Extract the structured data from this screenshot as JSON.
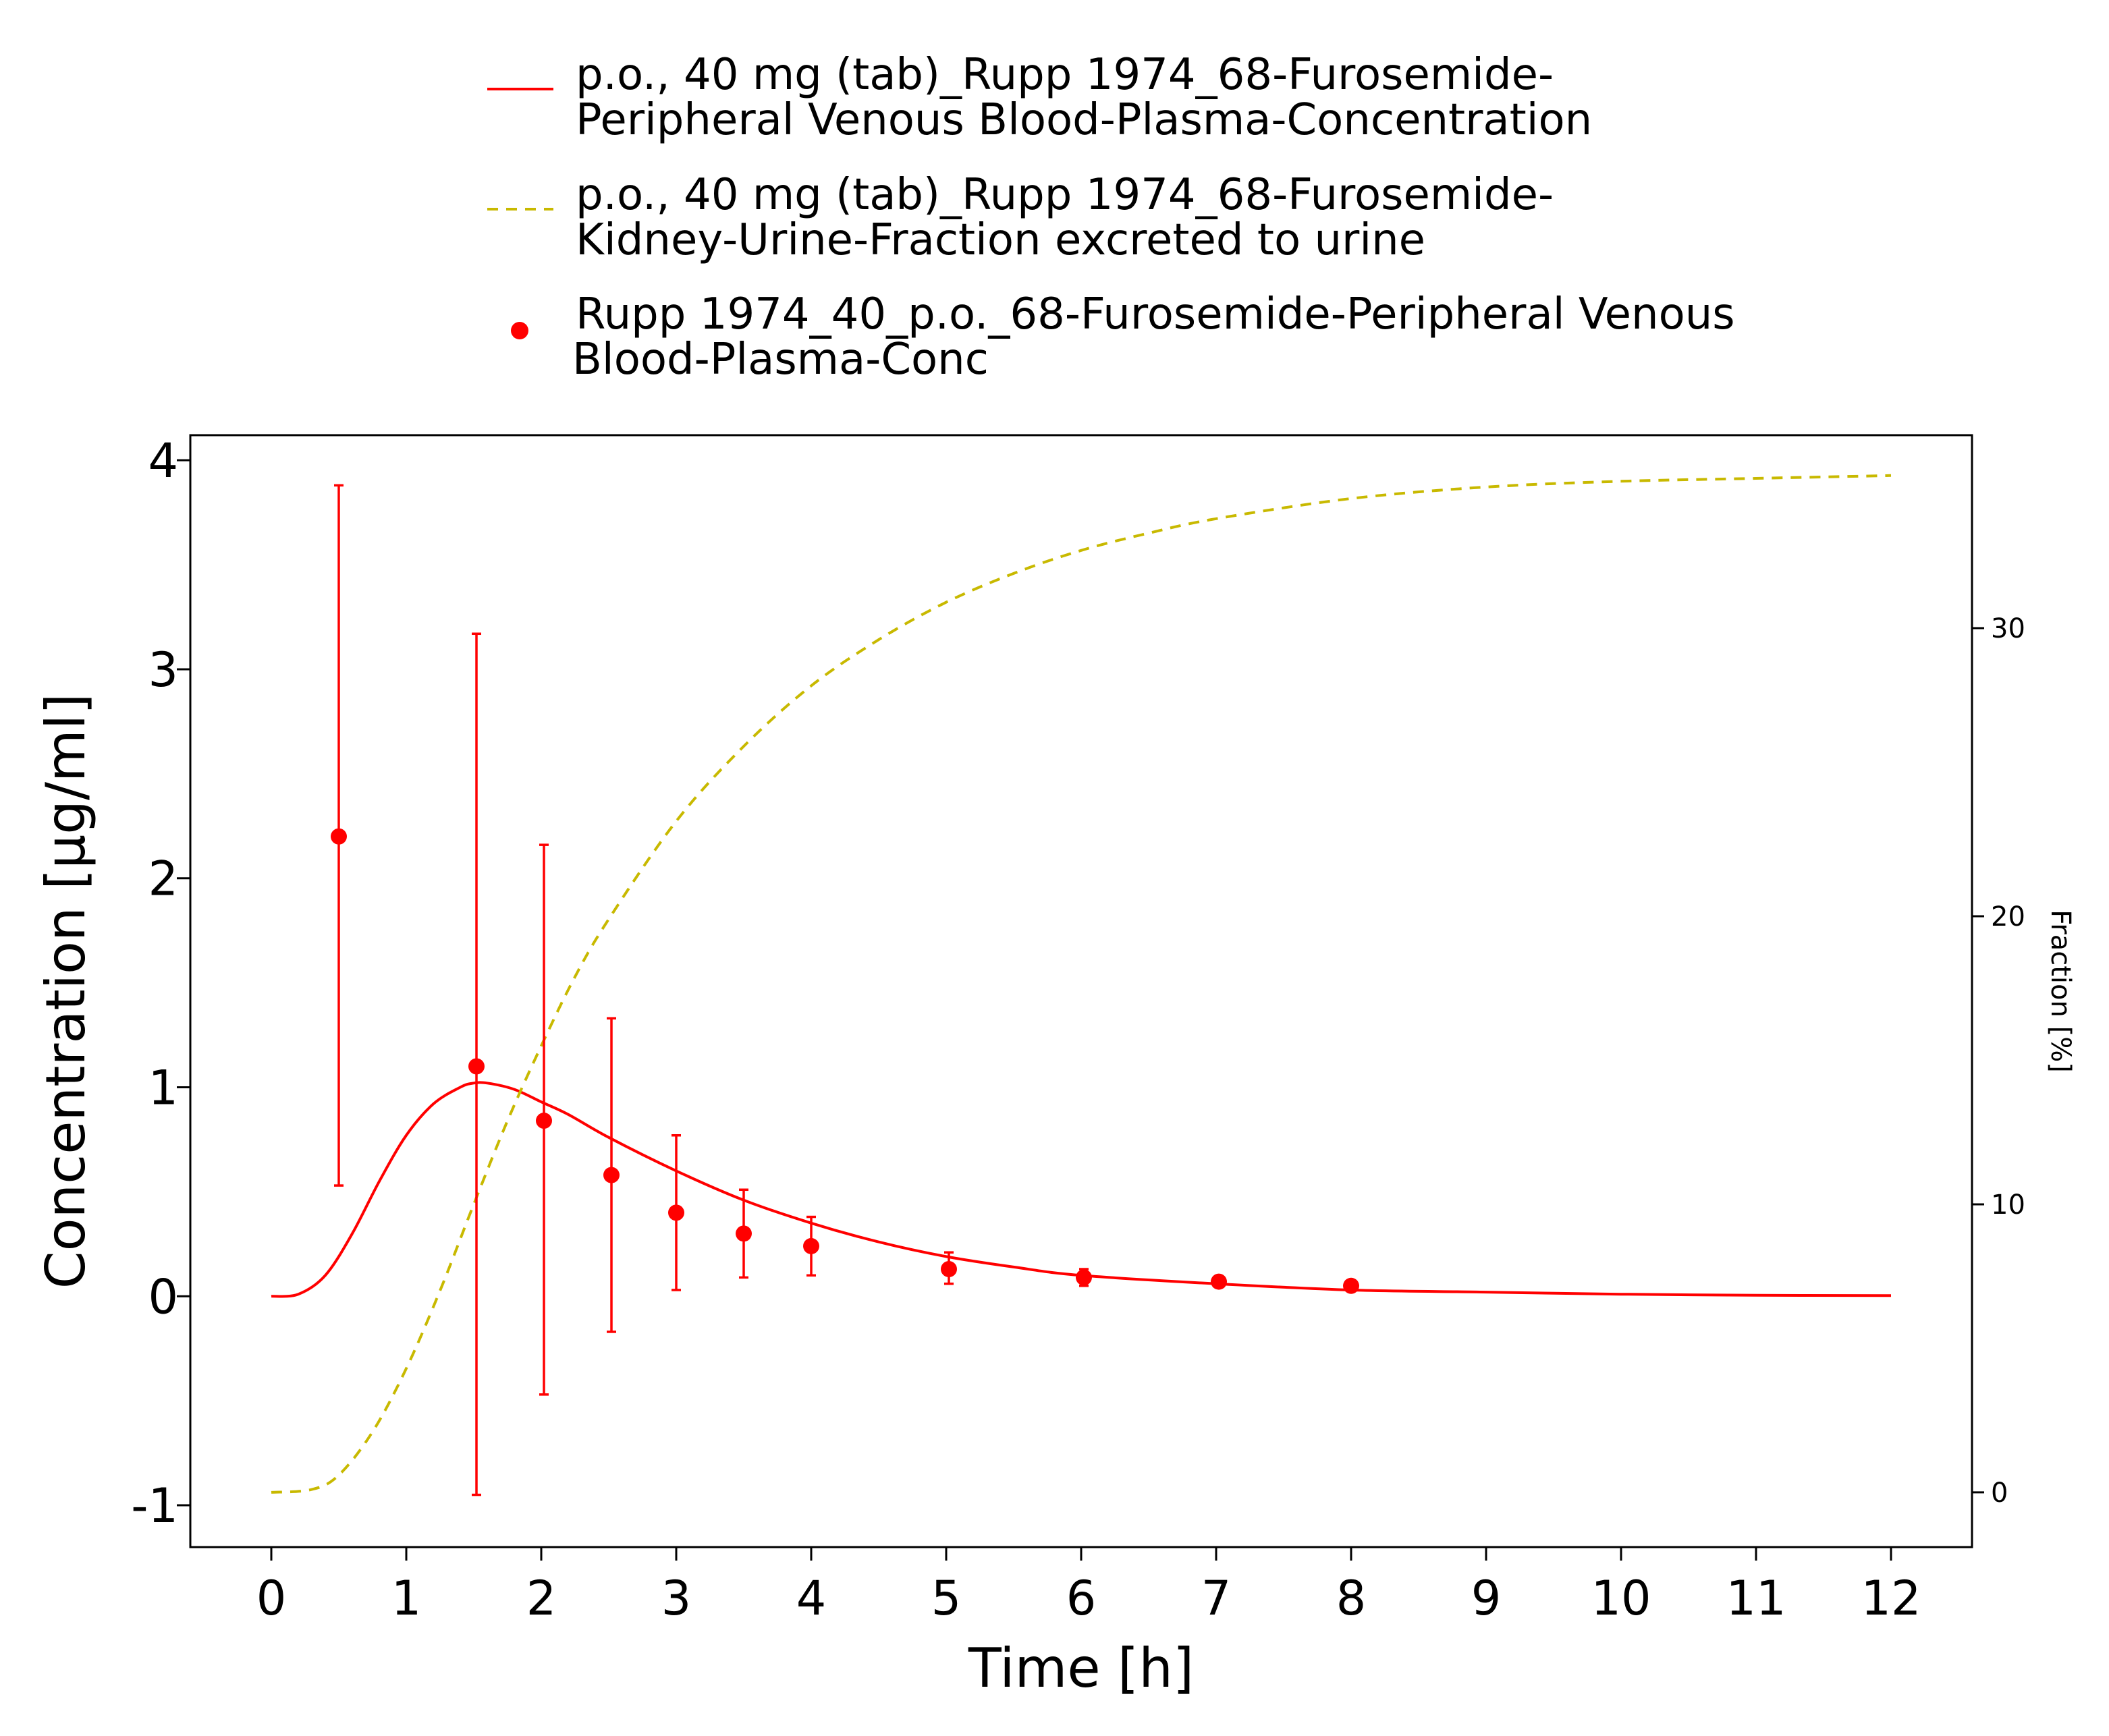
{
  "chart_data": {
    "type": "line",
    "xlabel": "Time [h]",
    "ylabel": "Concentration [µg/ml]",
    "y2label": "Fraction [%]",
    "xlim": [
      -0.6,
      12.6
    ],
    "ylim": [
      -1.2,
      4.12
    ],
    "y2lim": [
      -1.9,
      36.7
    ],
    "x_ticks": [
      0,
      1,
      2,
      3,
      4,
      5,
      6,
      7,
      8,
      9,
      10,
      11,
      12
    ],
    "x_tick_labels": [
      "0",
      "1",
      "2",
      "3",
      "4",
      "5",
      "6",
      "7",
      "8",
      "9",
      "10",
      "11",
      "12"
    ],
    "y_ticks": [
      -1,
      0,
      1,
      2,
      3,
      4
    ],
    "y_tick_labels": [
      "-1",
      "0",
      "1",
      "2",
      "3",
      "4"
    ],
    "y2_ticks": [
      0,
      10,
      20,
      30
    ],
    "y2_tick_labels": [
      "0",
      "10",
      "20",
      "30"
    ],
    "grid": false,
    "legend_position": "top",
    "legend": [
      {
        "key": "sim_plasma",
        "style": "line",
        "lines": [
          "p.o., 40 mg (tab)_Rupp 1974_68-Furosemide-",
          "Peripheral Venous Blood-Plasma-Concentration"
        ]
      },
      {
        "key": "sim_urine",
        "style": "dashed",
        "lines": [
          "p.o., 40 mg (tab)_Rupp 1974_68-Furosemide-",
          "Kidney-Urine-Fraction excreted to urine"
        ]
      },
      {
        "key": "obs_plasma",
        "style": "point",
        "lines": [
          "Rupp 1974_40_p.o._68-Furosemide-Peripheral Venous",
          "Blood-Plasma-Conc"
        ]
      }
    ],
    "series": [
      {
        "key": "sim_plasma",
        "axis": "left",
        "color": "#ff0000",
        "x": [
          0,
          0.2,
          0.4,
          0.6,
          0.8,
          1.0,
          1.2,
          1.4,
          1.5,
          1.6,
          1.8,
          2.0,
          2.2,
          2.5,
          3.0,
          3.5,
          4.0,
          4.5,
          5.0,
          5.5,
          6.0,
          7.0,
          8.0,
          9.0,
          10.0,
          11.0,
          12.0
        ],
        "y": [
          0,
          0.01,
          0.1,
          0.3,
          0.55,
          0.77,
          0.92,
          1.0,
          1.02,
          1.02,
          0.99,
          0.93,
          0.87,
          0.76,
          0.6,
          0.46,
          0.35,
          0.26,
          0.19,
          0.14,
          0.1,
          0.06,
          0.03,
          0.02,
          0.01,
          0.005,
          0.003
        ]
      },
      {
        "key": "sim_urine",
        "axis": "right",
        "color": "#c8b900",
        "x": [
          0,
          0.3,
          0.5,
          0.75,
          1.0,
          1.25,
          1.5,
          1.75,
          2.0,
          2.25,
          2.5,
          3.0,
          3.5,
          4.0,
          4.5,
          5.0,
          5.5,
          6.0,
          6.5,
          7.0,
          8.0,
          9.0,
          10.0,
          11.0,
          12.0
        ],
        "y": [
          0,
          0.1,
          0.6,
          2.1,
          4.3,
          7.0,
          10.0,
          12.9,
          15.5,
          17.9,
          19.9,
          23.3,
          25.9,
          28.0,
          29.6,
          30.9,
          31.9,
          32.7,
          33.3,
          33.8,
          34.5,
          34.9,
          35.1,
          35.2,
          35.3
        ]
      }
    ],
    "observations": {
      "key": "obs_plasma",
      "axis": "left",
      "color": "#ff0000",
      "points": [
        {
          "x": 0.5,
          "y": 2.2,
          "lo": 0.53,
          "hi": 3.88
        },
        {
          "x": 1.52,
          "y": 1.1,
          "lo": -0.95,
          "hi": 3.17
        },
        {
          "x": 2.02,
          "y": 0.84,
          "lo": -0.47,
          "hi": 2.16
        },
        {
          "x": 2.52,
          "y": 0.58,
          "lo": -0.17,
          "hi": 1.33
        },
        {
          "x": 3.0,
          "y": 0.4,
          "lo": 0.03,
          "hi": 0.77
        },
        {
          "x": 3.5,
          "y": 0.3,
          "lo": 0.09,
          "hi": 0.51
        },
        {
          "x": 4.0,
          "y": 0.24,
          "lo": 0.1,
          "hi": 0.38
        },
        {
          "x": 5.02,
          "y": 0.13,
          "lo": 0.06,
          "hi": 0.21
        },
        {
          "x": 6.02,
          "y": 0.09,
          "lo": 0.05,
          "hi": 0.13
        },
        {
          "x": 7.02,
          "y": 0.07,
          "lo": 0.06,
          "hi": 0.08
        },
        {
          "x": 8.0,
          "y": 0.05,
          "lo": 0.04,
          "hi": 0.06
        }
      ]
    }
  }
}
